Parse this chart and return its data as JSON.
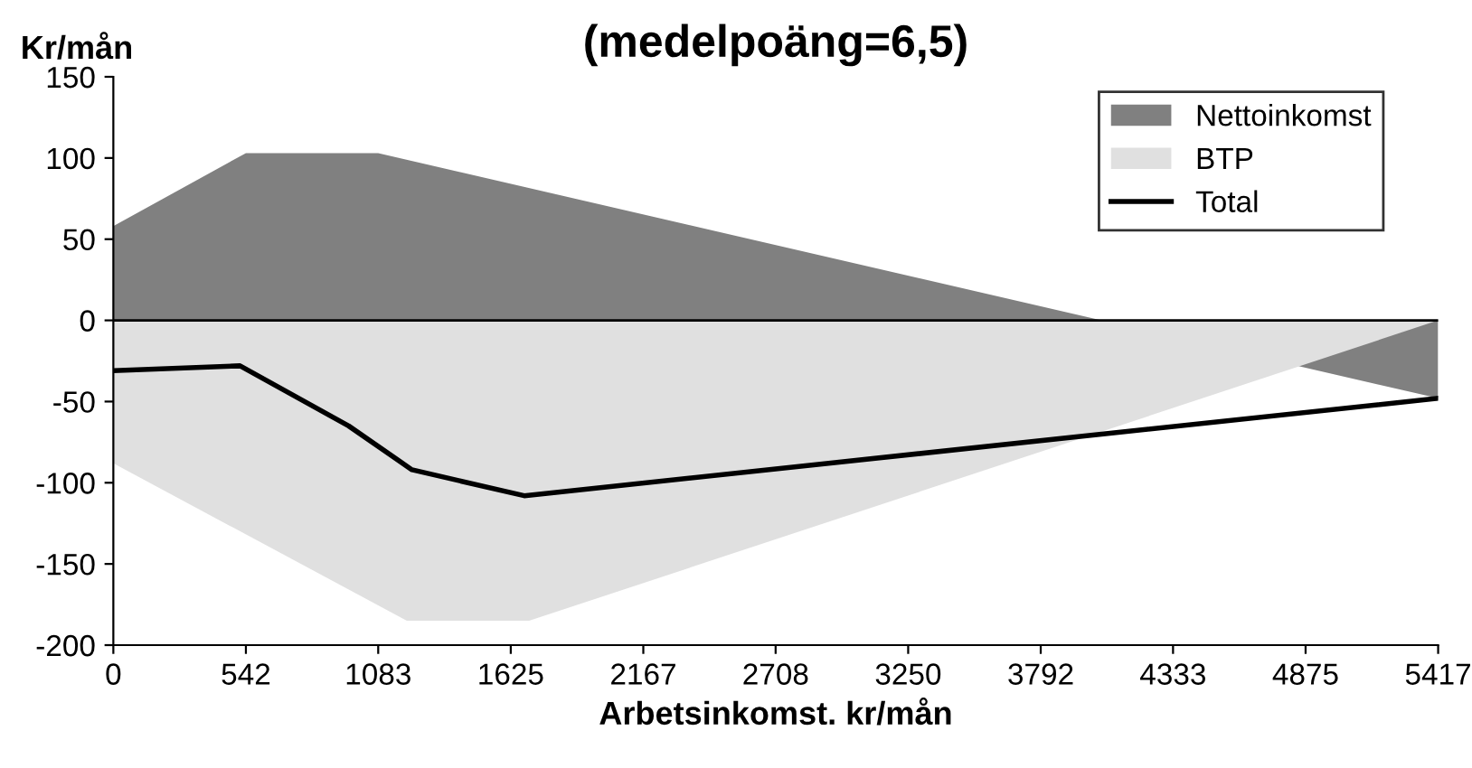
{
  "chart_data": {
    "type": "area",
    "title": "(medelpoäng=6,5)",
    "xlabel": "Arbetsinkomst. kr/mån",
    "ylabel": "Kr/mån",
    "series": [
      {
        "name": "Nettoinkomst",
        "color": "#808080",
        "x": [
          0,
          542,
          1083,
          5417
        ],
        "values": [
          58,
          103,
          103,
          -48
        ]
      },
      {
        "name": "BTP",
        "color": "#e0e0e0",
        "x": [
          0,
          1200,
          1700,
          5417
        ],
        "values": [
          -88,
          -185,
          -185,
          0
        ]
      },
      {
        "name": "Total",
        "type": "line",
        "color": "#000000",
        "x": [
          0,
          518,
          962,
          1221,
          1680,
          5417
        ],
        "values": [
          -31,
          -28,
          -65,
          -92,
          -108,
          -48
        ]
      }
    ],
    "xlim": [
      0,
      5417
    ],
    "xticks": [
      0,
      542,
      1083,
      1625,
      2167,
      2708,
      3250,
      3792,
      4333,
      4875,
      5417
    ],
    "ylim": [
      -200,
      150
    ],
    "yticks": [
      -200,
      -150,
      -100,
      -50,
      0,
      50,
      100,
      150
    ],
    "ref_lines": [
      {
        "axis": "y",
        "value": 0,
        "color": "#000000"
      }
    ],
    "grid": false,
    "legend": "top right"
  }
}
